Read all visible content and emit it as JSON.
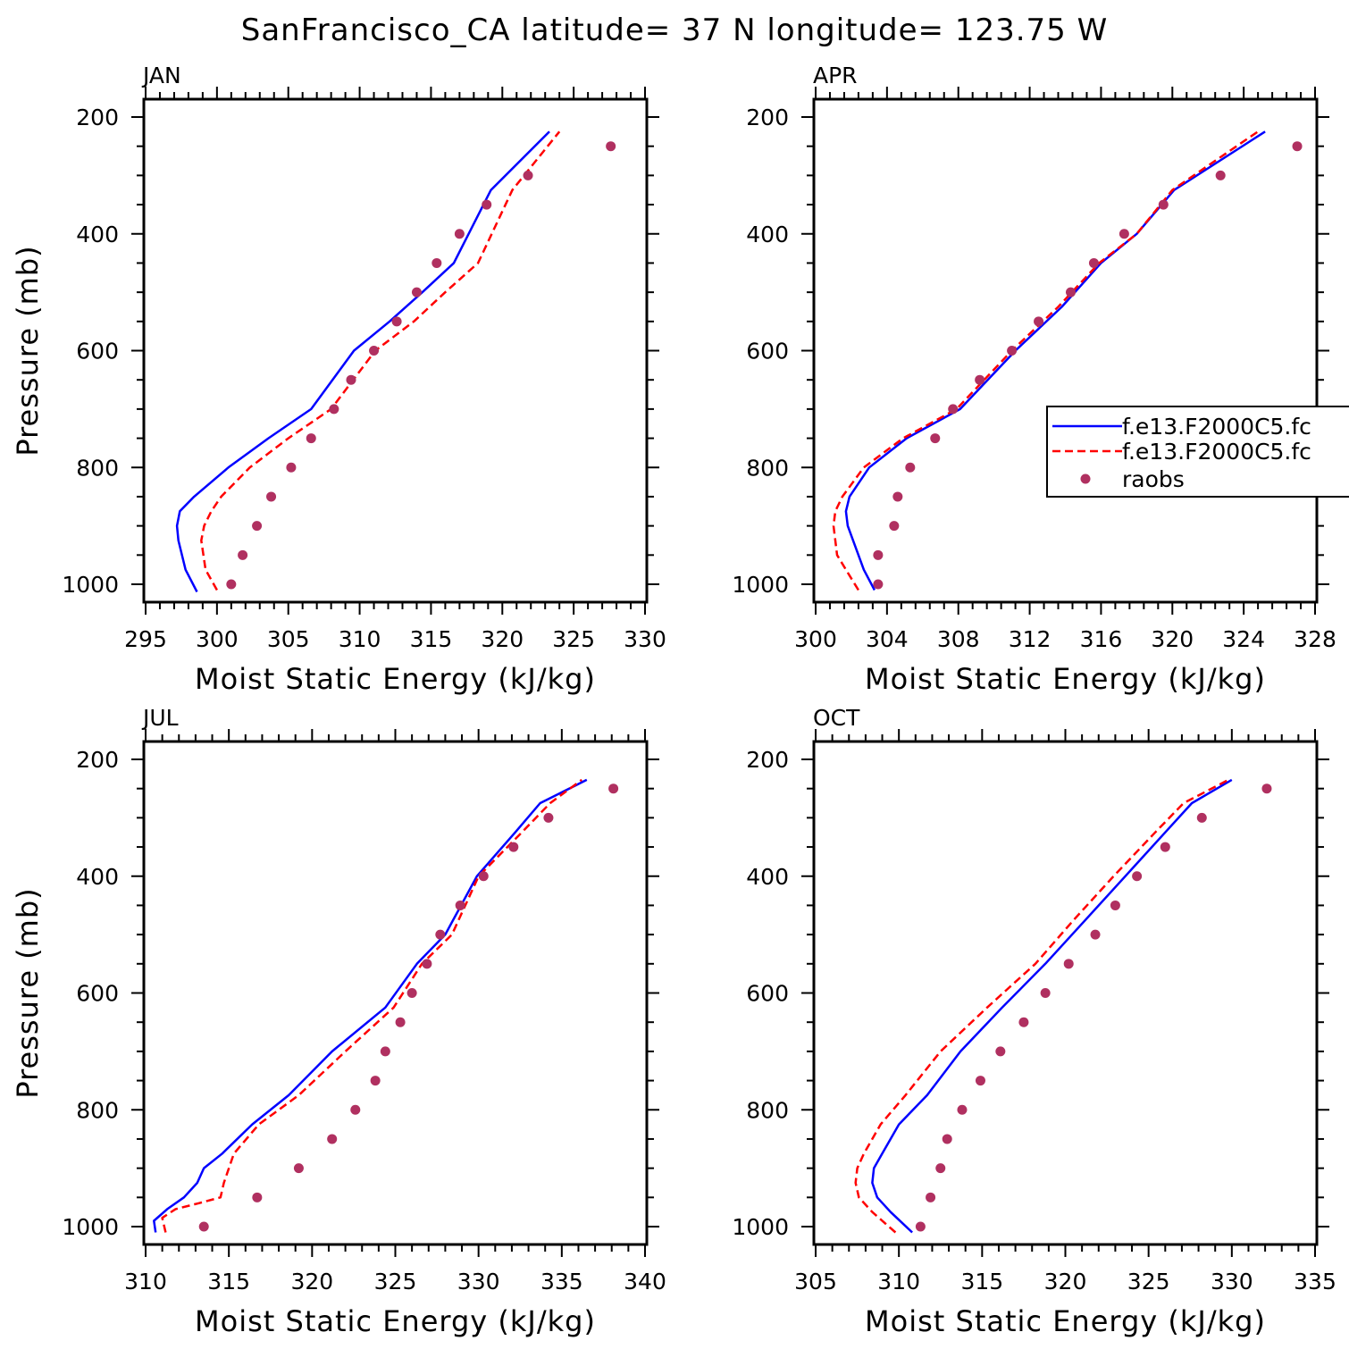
{
  "title": "SanFrancisco_CA  latitude= 37 N longitude= 123.75 W",
  "legend": {
    "entries": [
      {
        "label": "f.e13.F2000C5.fc",
        "color": "#0000ff",
        "style": "solid"
      },
      {
        "label": "f.e13.F2000C5.fc",
        "color": "#ff0000",
        "style": "dashed"
      },
      {
        "label": "raobs",
        "color": "#b03060",
        "style": "marker"
      }
    ]
  },
  "chart_data": [
    {
      "type": "line",
      "title": "JAN",
      "xlabel": "Moist Static Energy (kJ/kg)",
      "ylabel": "Pressure (mb)",
      "xlim": [
        295,
        330
      ],
      "xticks": [
        295,
        300,
        305,
        310,
        315,
        320,
        325,
        330
      ],
      "ylim": [
        1000,
        200
      ],
      "yticks": [
        200,
        400,
        600,
        800,
        1000
      ],
      "series": [
        {
          "name": "f.e13.F2000C5.fc (solid)",
          "x": [
            298.6,
            297.8,
            297.3,
            297.2,
            297.4,
            298.4,
            300.8,
            303.6,
            306.6,
            309.6,
            312.1,
            314.4,
            316.6,
            319.2,
            323.3
          ],
          "y": [
            1013,
            975,
            925,
            900,
            875,
            850,
            800,
            750,
            700,
            600,
            550,
            500,
            450,
            325,
            225
          ]
        },
        {
          "name": "f.e13.F2000C5.fc (dashed)",
          "x": [
            300,
            299.2,
            298.9,
            299.1,
            299.6,
            300.3,
            302.3,
            305.0,
            308.0,
            311.1,
            313.8,
            316.0,
            318.3,
            320.7,
            324.0
          ],
          "y": [
            1010,
            975,
            925,
            900,
            875,
            850,
            800,
            750,
            700,
            600,
            550,
            500,
            450,
            325,
            225
          ]
        },
        {
          "name": "raobs",
          "x": [
            301.0,
            301.8,
            302.8,
            303.8,
            305.2,
            306.6,
            308.2,
            309.4,
            311.0,
            312.6,
            314.0,
            315.4,
            317.0,
            318.9,
            321.8,
            327.6
          ],
          "y": [
            1000,
            950,
            900,
            850,
            800,
            750,
            700,
            650,
            600,
            550,
            500,
            450,
            400,
            350,
            300,
            250
          ]
        }
      ]
    },
    {
      "type": "line",
      "title": "APR",
      "xlabel": "Moist Static Energy (kJ/kg)",
      "ylabel": "",
      "xlim": [
        300,
        328
      ],
      "xticks": [
        300,
        304,
        308,
        312,
        316,
        320,
        324,
        328
      ],
      "ylim": [
        1000,
        200
      ],
      "yticks": [
        200,
        400,
        600,
        800,
        1000
      ],
      "series": [
        {
          "name": "f.e13.F2000C5.fc (solid)",
          "x": [
            303.3,
            302.7,
            302.4,
            301.8,
            301.7,
            301.9,
            303.0,
            305.1,
            308.1,
            311.2,
            313.8,
            316.0,
            318.0,
            320.1,
            325.2
          ],
          "y": [
            1010,
            975,
            950,
            900,
            875,
            850,
            800,
            750,
            700,
            600,
            525,
            450,
            400,
            325,
            225
          ]
        },
        {
          "name": "f.e13.F2000C5.fc (dashed)",
          "x": [
            302.4,
            301.7,
            301.2,
            301.0,
            301.1,
            301.5,
            302.7,
            304.9,
            307.9,
            311.0,
            313.6,
            315.9,
            318.0,
            320.0,
            324.8
          ],
          "y": [
            1010,
            975,
            950,
            900,
            875,
            850,
            800,
            750,
            700,
            600,
            525,
            450,
            400,
            325,
            225
          ]
        },
        {
          "name": "raobs",
          "x": [
            303.5,
            303.5,
            304.4,
            304.6,
            305.3,
            306.7,
            307.7,
            309.2,
            311.0,
            312.5,
            314.3,
            315.6,
            317.3,
            319.5,
            322.7,
            327.0
          ],
          "y": [
            1000,
            950,
            900,
            850,
            800,
            750,
            700,
            650,
            600,
            550,
            500,
            450,
            400,
            350,
            300,
            250
          ]
        }
      ]
    },
    {
      "type": "line",
      "title": "JUL",
      "xlabel": "Moist Static Energy (kJ/kg)",
      "ylabel": "Pressure (mb)",
      "xlim": [
        310,
        340
      ],
      "xticks": [
        310,
        315,
        320,
        325,
        330,
        335,
        340
      ],
      "ylim": [
        1000,
        200
      ],
      "yticks": [
        200,
        400,
        600,
        800,
        1000
      ],
      "series": [
        {
          "name": "f.e13.F2000C5.fc (solid)",
          "x": [
            310.6,
            310.5,
            311.3,
            312.3,
            313.1,
            313.5,
            314.6,
            316.4,
            318.6,
            321.2,
            324.4,
            326.3,
            328.0,
            329.9,
            332.2,
            333.7,
            336.5
          ],
          "y": [
            1010,
            990,
            970,
            950,
            925,
            900,
            875,
            825,
            775,
            700,
            625,
            550,
            500,
            400,
            325,
            275,
            235
          ]
        },
        {
          "name": "f.e13.F2000C5.fc (dashed)",
          "x": [
            311.2,
            311.0,
            311.8,
            313.2,
            314.5,
            314.7,
            315.3,
            316.8,
            319.2,
            322.0,
            324.9,
            326.6,
            328.4,
            330.0,
            332.6,
            334.3,
            336.2
          ],
          "y": [
            1010,
            985,
            970,
            960,
            950,
            925,
            875,
            825,
            775,
            700,
            625,
            550,
            500,
            400,
            325,
            275,
            235
          ]
        },
        {
          "name": "raobs",
          "x": [
            313.5,
            316.7,
            319.2,
            321.2,
            322.6,
            323.8,
            324.4,
            325.3,
            326.0,
            326.9,
            327.7,
            328.9,
            330.3,
            332.1,
            334.2,
            338.1
          ],
          "y": [
            1000,
            950,
            900,
            850,
            800,
            750,
            700,
            650,
            600,
            550,
            500,
            450,
            400,
            350,
            300,
            250
          ]
        }
      ]
    },
    {
      "type": "line",
      "title": "OCT",
      "xlabel": "Moist Static Energy (kJ/kg)",
      "ylabel": "",
      "xlim": [
        305,
        335
      ],
      "xticks": [
        305,
        310,
        315,
        320,
        325,
        330,
        335
      ],
      "ylim": [
        1000,
        200
      ],
      "yticks": [
        200,
        400,
        600,
        800,
        1000
      ],
      "series": [
        {
          "name": "f.e13.F2000C5.fc (solid)",
          "x": [
            310.8,
            309.5,
            308.7,
            308.4,
            308.5,
            309.0,
            310.0,
            311.7,
            313.7,
            316.2,
            318.8,
            321.2,
            323.6,
            326.0,
            327.6,
            330.0
          ],
          "y": [
            1010,
            975,
            950,
            925,
            900,
            875,
            825,
            775,
            700,
            625,
            550,
            475,
            400,
            325,
            275,
            235
          ]
        },
        {
          "name": "f.e13.F2000C5.fc (dashed)",
          "x": [
            309.8,
            308.4,
            307.6,
            307.4,
            307.5,
            307.9,
            308.9,
            310.4,
            312.5,
            315.3,
            318.2,
            320.5,
            322.9,
            325.4,
            327.1,
            329.8
          ],
          "y": [
            1010,
            975,
            950,
            925,
            900,
            875,
            825,
            775,
            700,
            625,
            550,
            475,
            400,
            325,
            275,
            235
          ]
        },
        {
          "name": "raobs",
          "x": [
            311.3,
            311.9,
            312.5,
            312.9,
            313.8,
            314.9,
            316.1,
            317.5,
            318.8,
            320.2,
            321.8,
            323.0,
            324.3,
            326.0,
            328.2,
            332.1
          ],
          "y": [
            1000,
            950,
            900,
            850,
            800,
            750,
            700,
            650,
            600,
            550,
            500,
            450,
            400,
            350,
            300,
            250
          ]
        }
      ]
    }
  ]
}
